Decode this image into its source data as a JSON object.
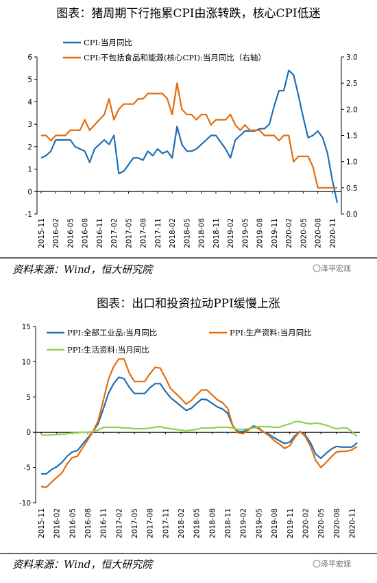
{
  "watermark": "泽平宏观",
  "source": "资料来源：Wind，恒大研究院",
  "chart_data": [
    {
      "type": "line",
      "title": "图表：猪周期下行拖累CPI由涨转跌，核心CPI低迷",
      "x_tick_labels": [
        "2015-11",
        "2016-02",
        "2016-05",
        "2016-08",
        "2016-11",
        "2017-02",
        "2017-05",
        "2017-08",
        "2017-11",
        "2018-02",
        "2018-05",
        "2018-08",
        "2018-11",
        "2019-02",
        "2019-05",
        "2019-08",
        "2019-11",
        "2020-02",
        "2020-05",
        "2020-08",
        "2020-11"
      ],
      "y_left": {
        "lim": [
          -1,
          6
        ],
        "ticks": [
          "-1",
          "0",
          "1",
          "2",
          "3",
          "4",
          "5",
          "6"
        ]
      },
      "y_right": {
        "lim": [
          0,
          3.0
        ],
        "ticks": [
          "0.0",
          "0.5",
          "1.0",
          "1.5",
          "2.0",
          "2.5",
          "3.0"
        ]
      },
      "legend_position": "top-left",
      "series": [
        {
          "name": "CPI:当月同比",
          "axis": "left",
          "color": "#1f6db5",
          "values": [
            1.5,
            1.6,
            1.8,
            2.3,
            2.3,
            2.3,
            2.3,
            2.0,
            1.9,
            1.8,
            1.3,
            1.9,
            2.1,
            2.3,
            2.1,
            2.5,
            0.8,
            0.9,
            1.2,
            1.5,
            1.5,
            1.4,
            1.8,
            1.6,
            1.9,
            1.7,
            1.8,
            1.5,
            2.9,
            2.1,
            1.8,
            1.8,
            1.9,
            2.1,
            2.3,
            2.5,
            2.5,
            2.2,
            1.9,
            1.5,
            2.3,
            2.5,
            2.7,
            2.7,
            2.7,
            2.8,
            2.8,
            3.0,
            3.8,
            4.5,
            4.5,
            5.4,
            5.2,
            4.3,
            3.3,
            2.4,
            2.5,
            2.7,
            2.4,
            1.7,
            0.5,
            -0.5
          ]
        },
        {
          "name": "CPI:不包括食品和能源(核心CPI):当月同比（右轴）",
          "axis": "right",
          "color": "#e46c0a",
          "values": [
            1.5,
            1.5,
            1.4,
            1.5,
            1.5,
            1.5,
            1.6,
            1.6,
            1.6,
            1.8,
            1.6,
            1.7,
            1.8,
            1.9,
            2.2,
            1.8,
            2.0,
            2.1,
            2.1,
            2.1,
            2.2,
            2.2,
            2.3,
            2.3,
            2.3,
            2.3,
            2.2,
            1.9,
            2.5,
            2.0,
            1.9,
            1.9,
            1.8,
            1.9,
            1.9,
            1.7,
            1.8,
            1.8,
            1.8,
            1.9,
            1.7,
            1.6,
            1.7,
            1.6,
            1.6,
            1.6,
            1.5,
            1.5,
            1.5,
            1.4,
            1.5,
            1.5,
            1.0,
            1.1,
            1.1,
            1.1,
            0.9,
            0.5,
            0.5,
            0.5,
            0.5,
            0.5
          ]
        }
      ]
    },
    {
      "type": "line",
      "title": "图表：出口和投资拉动PPI缓慢上涨",
      "x_tick_labels": [
        "2015-11",
        "2016-02",
        "2016-05",
        "2016-08",
        "2016-11",
        "2017-02",
        "2017-05",
        "2017-08",
        "2017-11",
        "2018-02",
        "2018-05",
        "2018-08",
        "2018-11",
        "2019-02",
        "2019-05",
        "2019-08",
        "2019-11",
        "2020-02",
        "2020-05",
        "2020-08",
        "2020-11"
      ],
      "y_left": {
        "lim": [
          -10,
          15
        ],
        "ticks": [
          "-10",
          "-5",
          "0",
          "5",
          "10",
          "15"
        ]
      },
      "legend_position": "top",
      "grid": "horizontal zero line",
      "series": [
        {
          "name": "PPI:全部工业品:当月同比",
          "color": "#1f6db5",
          "values": [
            -5.9,
            -5.9,
            -5.3,
            -4.9,
            -4.3,
            -3.4,
            -2.8,
            -2.6,
            -1.7,
            -0.8,
            0.1,
            1.2,
            3.3,
            5.5,
            6.9,
            7.8,
            7.6,
            6.4,
            5.5,
            5.5,
            5.5,
            6.3,
            6.9,
            6.9,
            5.8,
            4.9,
            4.3,
            3.7,
            3.1,
            3.4,
            4.1,
            4.7,
            4.6,
            4.1,
            3.6,
            3.3,
            2.7,
            0.9,
            0.1,
            0.1,
            0.4,
            0.9,
            0.6,
            0.0,
            -0.3,
            -0.8,
            -1.2,
            -1.6,
            -1.4,
            -0.5,
            0.1,
            -0.4,
            -1.5,
            -3.1,
            -3.7,
            -3.0,
            -2.4,
            -2.0,
            -2.1,
            -2.1,
            -2.1,
            -1.5
          ]
        },
        {
          "name": "PPI:生产资料:当月同比",
          "color": "#e46c0a",
          "values": [
            -7.7,
            -7.8,
            -7.1,
            -6.4,
            -5.8,
            -4.5,
            -3.6,
            -3.4,
            -2.2,
            -1.1,
            0.1,
            1.6,
            4.5,
            7.5,
            9.3,
            10.4,
            10.4,
            8.4,
            7.2,
            7.2,
            7.2,
            8.3,
            9.2,
            9.1,
            7.7,
            6.2,
            5.5,
            4.8,
            4.0,
            4.5,
            5.3,
            6.0,
            6.0,
            5.3,
            4.6,
            4.2,
            3.4,
            0.9,
            -0.1,
            -0.2,
            0.3,
            0.8,
            0.5,
            0.0,
            -0.5,
            -1.2,
            -1.7,
            -2.3,
            -1.9,
            -0.7,
            0.1,
            -0.6,
            -2.0,
            -4.0,
            -5.0,
            -4.3,
            -3.5,
            -2.8,
            -2.7,
            -2.7,
            -2.5,
            -2.0
          ]
        },
        {
          "name": "PPI:生活资料:当月同比",
          "color": "#92d050",
          "values": [
            -0.4,
            -0.4,
            -0.4,
            -0.3,
            -0.3,
            -0.2,
            -0.1,
            -0.1,
            0.0,
            0.0,
            0.1,
            0.3,
            0.7,
            0.7,
            0.7,
            0.7,
            0.6,
            0.6,
            0.5,
            0.5,
            0.5,
            0.6,
            0.7,
            0.8,
            0.6,
            0.5,
            0.4,
            0.3,
            0.2,
            0.3,
            0.4,
            0.6,
            0.6,
            0.6,
            0.7,
            0.7,
            0.7,
            0.6,
            0.4,
            0.4,
            0.5,
            0.6,
            0.8,
            0.8,
            0.8,
            0.7,
            0.7,
            1.0,
            1.2,
            1.5,
            1.5,
            1.3,
            1.2,
            1.3,
            1.2,
            1.0,
            0.7,
            0.5,
            0.6,
            0.6,
            0.1,
            -0.6
          ]
        }
      ]
    }
  ]
}
